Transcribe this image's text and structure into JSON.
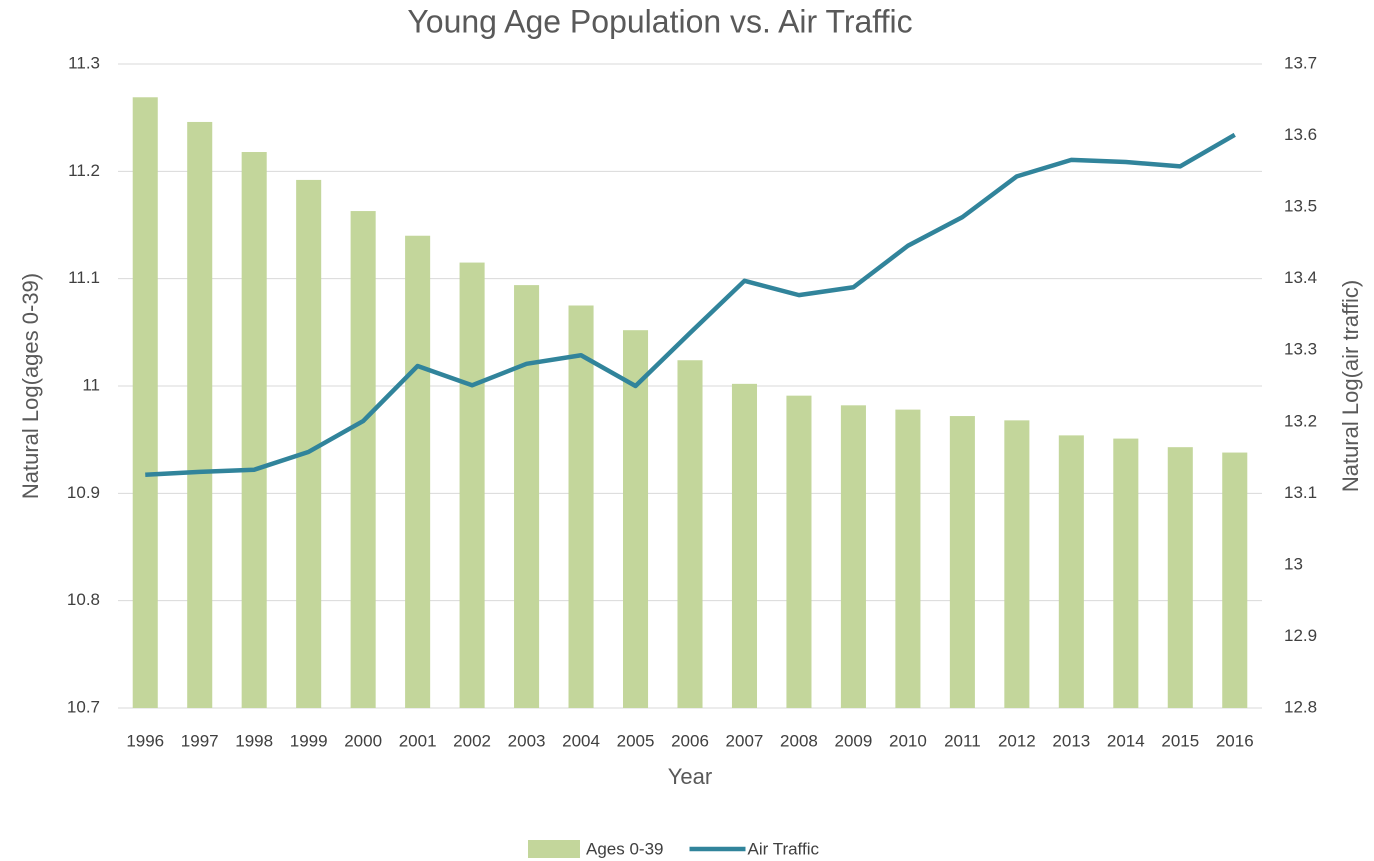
{
  "chart_data": {
    "type": "bar",
    "title": "Young Age Population vs. Air Traffic",
    "x_label": "Year",
    "y_label": "Natural Log(ages 0-39)",
    "y2_label": "Natural Log(air traffic)",
    "categories": [
      "1996",
      "1997",
      "1998",
      "1999",
      "2000",
      "2001",
      "2002",
      "2003",
      "2004",
      "2005",
      "2006",
      "2007",
      "2008",
      "2009",
      "2010",
      "2011",
      "2012",
      "2013",
      "2014",
      "2015",
      "2016"
    ],
    "series": [
      {
        "name": "Ages 0-39",
        "type": "bar",
        "color": "#c3d69b",
        "values": [
          11.269,
          11.246,
          11.218,
          11.192,
          11.163,
          11.14,
          11.115,
          11.094,
          11.075,
          11.052,
          11.024,
          11.002,
          10.991,
          10.982,
          10.978,
          10.972,
          10.968,
          10.954,
          10.951,
          10.943,
          10.938
        ]
      },
      {
        "name": "Air Traffic",
        "type": "line",
        "axis": "y2",
        "color": "#31849b",
        "values": [
          13.126,
          13.13,
          13.133,
          13.158,
          13.201,
          13.278,
          13.251,
          13.281,
          13.293,
          13.25,
          13.324,
          13.397,
          13.377,
          13.388,
          13.446,
          13.486,
          13.543,
          13.566,
          13.563,
          13.557,
          13.601
        ]
      }
    ],
    "ylim": [
      10.7,
      11.3
    ],
    "yticks": [
      10.7,
      10.8,
      10.9,
      11,
      11.1,
      11.2,
      11.3
    ],
    "y2lim": [
      12.8,
      13.7
    ],
    "y2ticks": [
      12.8,
      12.9,
      13,
      13.1,
      13.2,
      13.3,
      13.4,
      13.5,
      13.6,
      13.7
    ],
    "grid": true,
    "legend": "bottom"
  }
}
